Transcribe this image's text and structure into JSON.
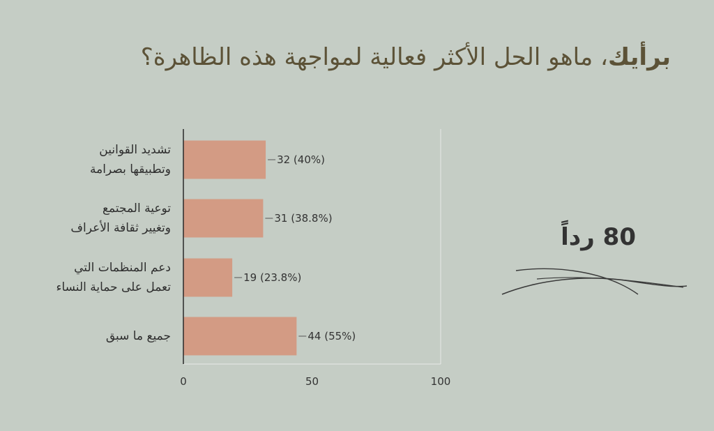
{
  "title_bold": "برأيك",
  "title_rest": "، ماهو الحل الأكثر فعالية لمواجهة هذه الظاهرة؟",
  "response_count": "80 رداً",
  "chart_data": {
    "type": "bar",
    "orientation": "horizontal",
    "categories": [
      [
        "تشديد القوانين",
        "وتطبيقها بصرامة"
      ],
      [
        "توعية المجتمع",
        "وتغيير ثقافة الأعراف"
      ],
      [
        "دعم المنظمات التي",
        "تعمل على حماية النساء"
      ],
      [
        "جميع ما سبق"
      ]
    ],
    "values": [
      32,
      31,
      19,
      44
    ],
    "value_labels": [
      "32 (40%)",
      "31 (38.8%)",
      "19 (23.8%)",
      "44 (55%)"
    ],
    "xlim": [
      0,
      100
    ],
    "xticks": [
      0,
      50,
      100
    ],
    "bar_color": "#d39b84",
    "grid": false
  }
}
